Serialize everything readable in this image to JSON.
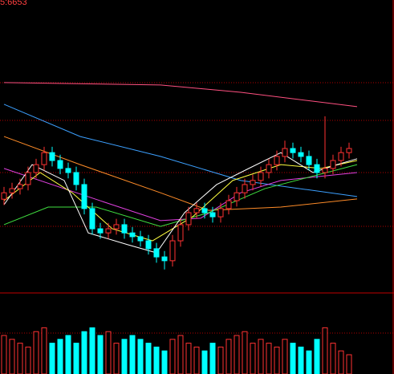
{
  "chart_data": {
    "type": "candlestick",
    "label": "5:6653",
    "ylim": [
      0,
      100
    ],
    "up_color": "#ff3232",
    "down_color": "#00ffff",
    "open": [
      32.0,
      34.2,
      35.6,
      37.0,
      41.1,
      43.8,
      47.9,
      45.2,
      42.5,
      41.1,
      37.0,
      28.8,
      21.9,
      20.5,
      21.9,
      23.3,
      20.5,
      19.2,
      17.8,
      15.1,
      12.3,
      11.0,
      17.8,
      23.3,
      27.4,
      28.8,
      27.4,
      26.0,
      28.8,
      31.5,
      34.2,
      37.0,
      38.4,
      41.1,
      43.8,
      46.6,
      49.3,
      47.9,
      46.6,
      43.8,
      41.1,
      42.5,
      45.2,
      47.9
    ],
    "high": [
      36.2,
      37.6,
      39.0,
      43.1,
      45.8,
      49.9,
      49.9,
      47.2,
      44.5,
      43.1,
      39.0,
      30.8,
      23.9,
      23.9,
      25.3,
      25.3,
      22.5,
      21.2,
      19.8,
      17.1,
      14.3,
      19.8,
      25.3,
      29.4,
      30.8,
      30.8,
      29.4,
      30.8,
      33.5,
      36.2,
      39.0,
      40.4,
      43.1,
      45.8,
      48.6,
      52.0,
      51.3,
      49.9,
      48.6,
      45.8,
      60.3,
      47.2,
      49.9,
      51.3
    ],
    "low": [
      30.0,
      32.2,
      33.6,
      35.0,
      39.1,
      41.8,
      43.2,
      40.5,
      39.1,
      35.0,
      26.8,
      19.9,
      18.5,
      18.5,
      19.9,
      18.5,
      17.2,
      15.8,
      13.1,
      10.3,
      8.0,
      9.0,
      15.8,
      21.3,
      25.4,
      25.4,
      24.0,
      24.0,
      26.8,
      29.5,
      32.2,
      35.0,
      36.4,
      39.1,
      41.8,
      44.6,
      45.9,
      44.6,
      41.8,
      39.1,
      39.1,
      40.5,
      43.2,
      45.9
    ],
    "close": [
      34.2,
      35.6,
      37.0,
      41.1,
      43.8,
      47.9,
      45.2,
      42.5,
      41.1,
      37.0,
      28.8,
      21.9,
      20.5,
      21.9,
      23.3,
      20.5,
      19.2,
      17.8,
      15.1,
      12.3,
      11.0,
      17.8,
      23.3,
      27.4,
      28.8,
      27.4,
      26.0,
      28.8,
      31.5,
      34.2,
      37.0,
      38.4,
      41.1,
      43.8,
      46.6,
      49.3,
      47.9,
      46.6,
      43.8,
      41.1,
      42.5,
      45.2,
      47.9,
      49.3
    ],
    "lines": [
      {
        "color": "#ff5080",
        "x": [
          0,
          19.5,
          29.5,
          44
        ],
        "values": [
          71.8,
          71.0,
          68.5,
          63.6
        ]
      },
      {
        "color": "#3ca0ff",
        "x": [
          0,
          9.5,
          19.5,
          29.5,
          44
        ],
        "values": [
          64.4,
          53.4,
          46.6,
          38.4,
          32.9
        ]
      },
      {
        "color": "#ff8c28",
        "x": [
          0,
          9.5,
          19.5,
          25.5,
          34.5,
          44
        ],
        "values": [
          53.4,
          43.8,
          34.2,
          28.2,
          29.3,
          32.1
        ]
      },
      {
        "color": "#e040e0",
        "x": [
          0,
          7.5,
          13.5,
          19.5,
          24.5,
          29.5,
          34.5,
          44
        ],
        "values": [
          42.5,
          35.6,
          30.1,
          24.7,
          25.5,
          34.2,
          38.4,
          41.1
        ]
      },
      {
        "color": "#40e040",
        "x": [
          0,
          5.5,
          11.5,
          19.5,
          25.5,
          32.5,
          44
        ],
        "values": [
          23.3,
          29.3,
          29.3,
          22.7,
          27.4,
          35.6,
          43.8
        ]
      },
      {
        "color": "#ffff40",
        "x": [
          0,
          4.5,
          8.5,
          13.5,
          18.5,
          23.5,
          28.5,
          34.5,
          39.5,
          44
        ],
        "values": [
          31.5,
          41.1,
          34.2,
          21.9,
          17.8,
          26.0,
          38.4,
          43.8,
          42.5,
          45.2
        ]
      },
      {
        "color": "#ffffff",
        "x": [
          0,
          3.5,
          7.5,
          10.5,
          15.5,
          19,
          22.5,
          26.5,
          30.5,
          34.5,
          38.5,
          41.5,
          44
        ],
        "values": [
          30.1,
          43.8,
          38.4,
          20.5,
          16.4,
          13.7,
          27.4,
          37.0,
          42.5,
          47.9,
          41.1,
          43.8,
          45.8
        ]
      }
    ],
    "vlim": [
      0,
      100
    ],
    "volume": [
      50,
      45,
      40,
      35,
      55,
      60,
      40,
      45,
      50,
      40,
      55,
      60,
      50,
      55,
      40,
      45,
      50,
      45,
      40,
      35,
      30,
      45,
      50,
      40,
      35,
      30,
      40,
      35,
      45,
      50,
      55,
      40,
      45,
      40,
      35,
      45,
      40,
      35,
      30,
      45,
      60,
      40,
      30,
      25
    ]
  }
}
